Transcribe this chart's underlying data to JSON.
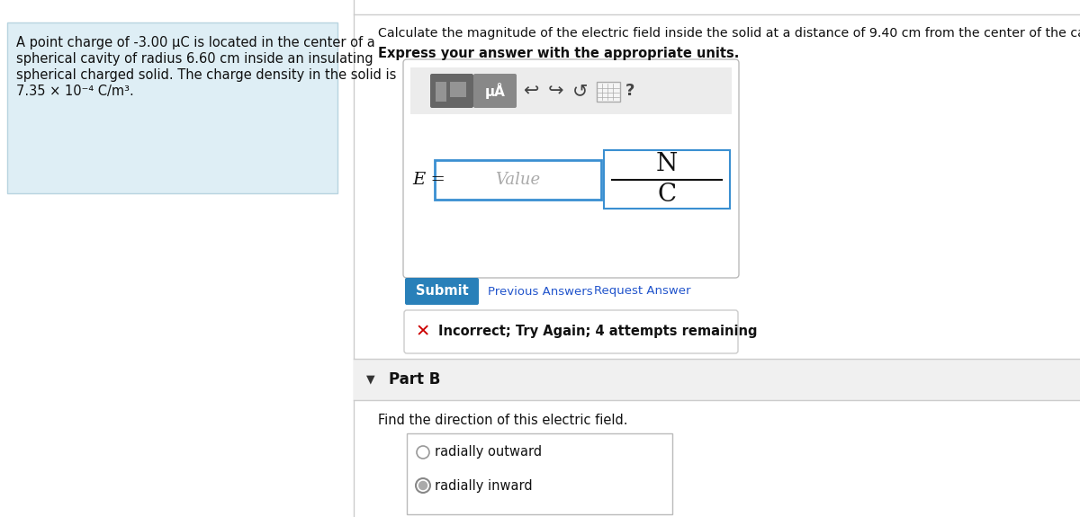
{
  "bg_color": "#ffffff",
  "left_panel_bg": "#deeef5",
  "left_panel_text_line1": "A point charge of -3.00 μC is located in the center of a",
  "left_panel_text_line2": "spherical cavity of radius 6.60 cm inside an insulating",
  "left_panel_text_line3": "spherical charged solid. The charge density in the solid is",
  "left_panel_text_line4": "7.35 × 10⁻⁴ C/m³.",
  "top_instruction": "Calculate the magnitude of the electric field inside the solid at a distance of 9.40 cm from the center of the cavity.",
  "top_instruction2": "Express your answer with the appropriate units.",
  "submit_btn_color": "#2980b9",
  "submit_text": "Submit",
  "prev_answers_text": "Previous Answers",
  "request_answer_text": "Request Answer",
  "incorrect_text": "Incorrect; Try Again; 4 attempts remaining",
  "part_b_label": "Part B",
  "find_direction_text": "Find the direction of this electric field.",
  "radio1": "radially outward",
  "radio2": "radially inward",
  "e_label": "E =",
  "value_placeholder": "Value",
  "units_n": "N",
  "units_c": "C",
  "divider_color": "#cccccc",
  "link_color": "#2255cc",
  "toolbar_bg": "#e8e8e8",
  "toolbar_btn1_color": "#666666",
  "toolbar_btn2_color": "#888888"
}
